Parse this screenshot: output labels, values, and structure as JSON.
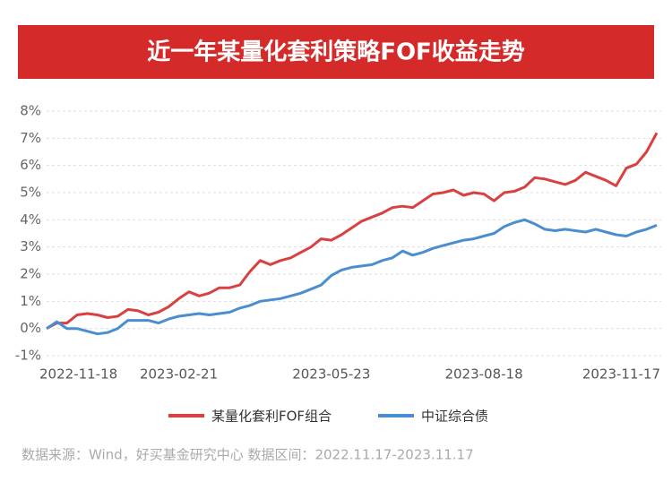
{
  "chart_data": {
    "type": "line",
    "title": "近一年某量化套利策略FOF收益走势",
    "source": "数据来源：Wind，好买基金研究中心  数据区间：2022.11.17-2023.11.17",
    "categories": [
      "2022-11-18",
      null,
      null,
      null,
      null,
      null,
      null,
      null,
      null,
      null,
      null,
      null,
      null,
      "2023-02-21",
      null,
      null,
      null,
      null,
      null,
      null,
      null,
      null,
      null,
      null,
      null,
      null,
      null,
      null,
      "2023-05-23",
      null,
      null,
      null,
      null,
      null,
      null,
      null,
      null,
      null,
      null,
      null,
      null,
      null,
      null,
      "2023-08-18",
      null,
      null,
      null,
      null,
      null,
      null,
      null,
      null,
      null,
      null,
      null,
      null,
      null,
      null,
      null,
      null,
      "2023-11-17"
    ],
    "series": [
      {
        "name": "某量化套利FOF组合",
        "color": "#d94040",
        "values": [
          0.0,
          0.2,
          0.2,
          0.5,
          0.55,
          0.5,
          0.4,
          0.45,
          0.7,
          0.65,
          0.5,
          0.6,
          0.8,
          1.1,
          1.35,
          1.2,
          1.3,
          1.5,
          1.5,
          1.6,
          2.1,
          2.5,
          2.35,
          2.5,
          2.6,
          2.8,
          3.0,
          3.3,
          3.25,
          3.45,
          3.7,
          3.95,
          4.1,
          4.25,
          4.45,
          4.5,
          4.45,
          4.7,
          4.95,
          5.0,
          5.1,
          4.9,
          5.0,
          4.95,
          4.7,
          5.0,
          5.05,
          5.2,
          5.55,
          5.5,
          5.4,
          5.3,
          5.45,
          5.75,
          5.6,
          5.45,
          5.25,
          5.9,
          6.05,
          6.5,
          7.2
        ]
      },
      {
        "name": "中证综合债",
        "color": "#4a8ed0",
        "values": [
          0.0,
          0.25,
          0.0,
          0.0,
          -0.1,
          -0.2,
          -0.15,
          0.0,
          0.3,
          0.3,
          0.3,
          0.2,
          0.35,
          0.45,
          0.5,
          0.55,
          0.5,
          0.55,
          0.6,
          0.75,
          0.85,
          1.0,
          1.05,
          1.1,
          1.2,
          1.3,
          1.45,
          1.6,
          1.95,
          2.15,
          2.25,
          2.3,
          2.35,
          2.5,
          2.6,
          2.85,
          2.7,
          2.8,
          2.95,
          3.05,
          3.15,
          3.25,
          3.3,
          3.4,
          3.5,
          3.75,
          3.9,
          4.0,
          3.85,
          3.65,
          3.6,
          3.65,
          3.6,
          3.55,
          3.65,
          3.55,
          3.45,
          3.4,
          3.55,
          3.65,
          3.8
        ]
      }
    ],
    "ylim": [
      -1,
      8
    ],
    "yticks": [
      {
        "value": -1,
        "label": "-1%"
      },
      {
        "value": 0,
        "label": "0%"
      },
      {
        "value": 1,
        "label": "1%"
      },
      {
        "value": 2,
        "label": "2%"
      },
      {
        "value": 3,
        "label": "3%"
      },
      {
        "value": 4,
        "label": "4%"
      },
      {
        "value": 5,
        "label": "5%"
      },
      {
        "value": 6,
        "label": "6%"
      },
      {
        "value": 7,
        "label": "7%"
      },
      {
        "value": 8,
        "label": "8%"
      }
    ],
    "grid": true
  }
}
